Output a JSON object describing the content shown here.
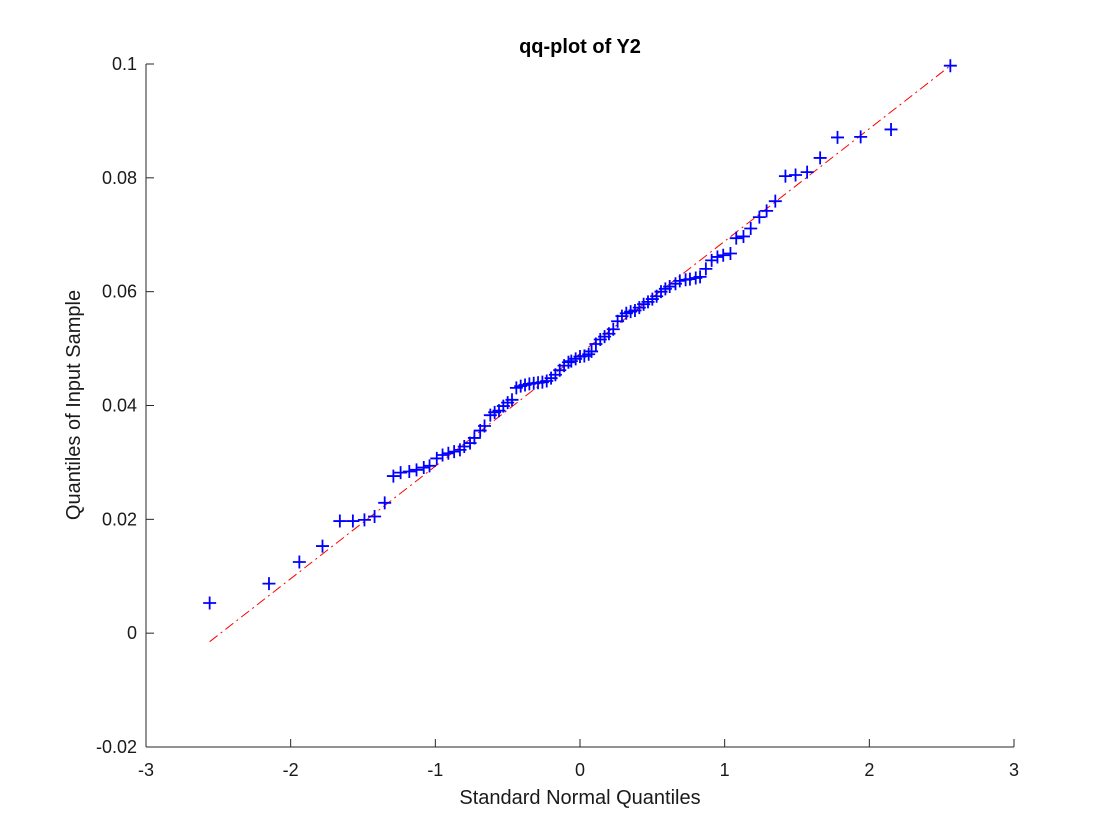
{
  "chart_data": {
    "type": "scatter",
    "title": "qq-plot of Y2",
    "xlabel": "Standard Normal Quantiles",
    "ylabel": "Quantiles of Input Sample",
    "xlim": [
      -3,
      3
    ],
    "ylim": [
      -0.02,
      0.1
    ],
    "xticks": [
      "-3",
      "-2",
      "-1",
      "0",
      "1",
      "2",
      "3"
    ],
    "yticks": [
      "-0.02",
      "0",
      "0.02",
      "0.04",
      "0.06",
      "0.08",
      "0.1"
    ],
    "xtick_values": [
      -3,
      -2,
      -1,
      0,
      1,
      2,
      3
    ],
    "ytick_values": [
      -0.02,
      0,
      0.02,
      0.04,
      0.06,
      0.08,
      0.1
    ],
    "grid": false,
    "series": [
      {
        "marker": "+",
        "color": "#0000ff",
        "points": [
          [
            -2.56,
            0.0053
          ],
          [
            -2.15,
            0.0087
          ],
          [
            -1.94,
            0.0125
          ],
          [
            -1.78,
            0.0153
          ],
          [
            -1.66,
            0.0197
          ],
          [
            -1.57,
            0.0197
          ],
          [
            -1.49,
            0.0199
          ],
          [
            -1.42,
            0.0205
          ],
          [
            -1.35,
            0.0229
          ],
          [
            -1.29,
            0.0276
          ],
          [
            -1.24,
            0.0282
          ],
          [
            -1.18,
            0.0284
          ],
          [
            -1.13,
            0.0287
          ],
          [
            -1.08,
            0.0291
          ],
          [
            -1.04,
            0.0294
          ],
          [
            -0.99,
            0.0307
          ],
          [
            -0.95,
            0.0313
          ],
          [
            -0.91,
            0.0316
          ],
          [
            -0.87,
            0.0319
          ],
          [
            -0.83,
            0.0322
          ],
          [
            -0.8,
            0.0328
          ],
          [
            -0.76,
            0.0334
          ],
          [
            -0.73,
            0.0343
          ],
          [
            -0.69,
            0.0356
          ],
          [
            -0.66,
            0.0364
          ],
          [
            -0.62,
            0.0383
          ],
          [
            -0.59,
            0.0388
          ],
          [
            -0.56,
            0.0391
          ],
          [
            -0.53,
            0.0399
          ],
          [
            -0.5,
            0.0405
          ],
          [
            -0.47,
            0.041
          ],
          [
            -0.44,
            0.0431
          ],
          [
            -0.41,
            0.0434
          ],
          [
            -0.38,
            0.0436
          ],
          [
            -0.35,
            0.0438
          ],
          [
            -0.32,
            0.0439
          ],
          [
            -0.29,
            0.044
          ],
          [
            -0.26,
            0.0441
          ],
          [
            -0.23,
            0.0443
          ],
          [
            -0.2,
            0.0448
          ],
          [
            -0.17,
            0.0454
          ],
          [
            -0.14,
            0.0462
          ],
          [
            -0.11,
            0.047
          ],
          [
            -0.08,
            0.0476
          ],
          [
            -0.06,
            0.0478
          ],
          [
            -0.03,
            0.0482
          ],
          [
            0.0,
            0.0486
          ],
          [
            0.03,
            0.0487
          ],
          [
            0.06,
            0.049
          ],
          [
            0.08,
            0.0495
          ],
          [
            0.11,
            0.0508
          ],
          [
            0.14,
            0.0516
          ],
          [
            0.17,
            0.0521
          ],
          [
            0.2,
            0.0526
          ],
          [
            0.23,
            0.0534
          ],
          [
            0.26,
            0.0548
          ],
          [
            0.29,
            0.0557
          ],
          [
            0.32,
            0.0562
          ],
          [
            0.35,
            0.0565
          ],
          [
            0.38,
            0.0567
          ],
          [
            0.41,
            0.0572
          ],
          [
            0.44,
            0.0578
          ],
          [
            0.47,
            0.0582
          ],
          [
            0.5,
            0.0587
          ],
          [
            0.53,
            0.0592
          ],
          [
            0.56,
            0.06
          ],
          [
            0.59,
            0.0605
          ],
          [
            0.62,
            0.0609
          ],
          [
            0.66,
            0.0614
          ],
          [
            0.69,
            0.0619
          ],
          [
            0.73,
            0.0621
          ],
          [
            0.76,
            0.0622
          ],
          [
            0.8,
            0.0624
          ],
          [
            0.83,
            0.0626
          ],
          [
            0.87,
            0.064
          ],
          [
            0.91,
            0.0655
          ],
          [
            0.95,
            0.0661
          ],
          [
            0.99,
            0.0664
          ],
          [
            1.04,
            0.0667
          ],
          [
            1.08,
            0.0694
          ],
          [
            1.13,
            0.0697
          ],
          [
            1.18,
            0.0711
          ],
          [
            1.24,
            0.0731
          ],
          [
            1.29,
            0.0742
          ],
          [
            1.35,
            0.0759
          ],
          [
            1.42,
            0.0803
          ],
          [
            1.49,
            0.0805
          ],
          [
            1.57,
            0.081
          ],
          [
            1.66,
            0.0835
          ],
          [
            1.78,
            0.0871
          ],
          [
            1.94,
            0.0872
          ],
          [
            2.15,
            0.0885
          ],
          [
            2.56,
            0.0997
          ]
        ]
      }
    ],
    "reference_line": {
      "style": "dash-dot",
      "color": "#ff0000",
      "start": [
        -2.56,
        -0.0015
      ],
      "end": [
        2.56,
        0.0997
      ]
    }
  }
}
